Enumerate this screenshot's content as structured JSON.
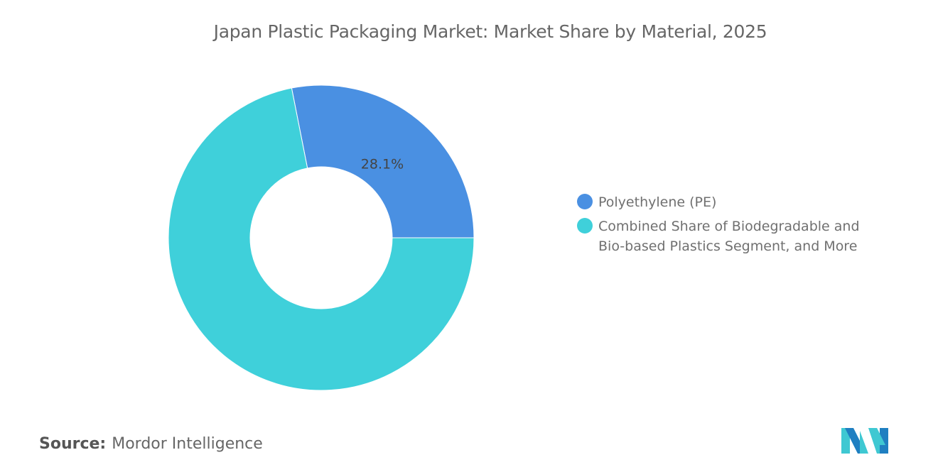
{
  "chart_data": {
    "type": "pie",
    "variant": "donut",
    "title": "Japan Plastic Packaging Market: Market Share by Material, 2025",
    "slices": [
      {
        "name": "Polyethylene (PE)",
        "value": 28.1,
        "label": "28.1%",
        "color": "#4a90e2"
      },
      {
        "name": "Combined Share of Biodegradable and Bio-based Plastics Segment, and More",
        "value": 71.9,
        "label": "",
        "color": "#3fd0da"
      }
    ],
    "legend_position": "right"
  },
  "source": {
    "label": "Source:",
    "value": "Mordor Intelligence"
  },
  "logo": {
    "text": "Mordor Intelligence",
    "colors": [
      "#1f7fc1",
      "#3fc8d2"
    ]
  }
}
